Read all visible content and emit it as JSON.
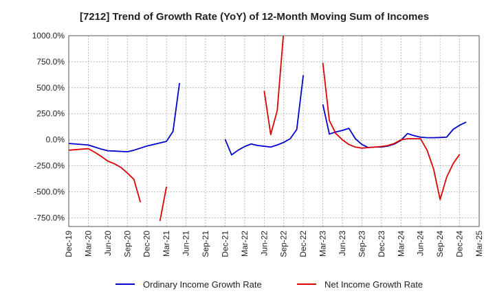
{
  "chart_data": {
    "type": "line",
    "title": "[7212]  Trend of Growth Rate (YoY) of 12-Month Moving Sum of Incomes",
    "xlabel": "",
    "ylabel": "",
    "ylim": [
      -833,
      1000
    ],
    "y_ticks": [
      -750,
      -500,
      -250,
      0,
      250,
      500,
      750,
      1000
    ],
    "y_tick_labels": [
      "-750.0%",
      "-500.0%",
      "-250.0%",
      "0.0%",
      "250.0%",
      "500.0%",
      "750.0%",
      "1000.0%"
    ],
    "x_tick_labels": [
      "Dec-19",
      "Mar-20",
      "Jun-20",
      "Sep-20",
      "Dec-20",
      "Mar-21",
      "Jun-21",
      "Sep-21",
      "Dec-21",
      "Mar-22",
      "Jun-22",
      "Sep-22",
      "Dec-22",
      "Mar-23",
      "Jun-23",
      "Sep-23",
      "Dec-23",
      "Mar-24",
      "Jun-24",
      "Sep-24",
      "Dec-24",
      "Mar-25"
    ],
    "x": [
      "2019-12",
      "2020-01",
      "2020-02",
      "2020-03",
      "2020-04",
      "2020-05",
      "2020-06",
      "2020-07",
      "2020-08",
      "2020-09",
      "2020-10",
      "2020-11",
      "2020-12",
      "2021-01",
      "2021-02",
      "2021-03",
      "2021-04",
      "2021-05",
      "2021-06",
      "2021-07",
      "2021-08",
      "2021-09",
      "2021-10",
      "2021-11",
      "2021-12",
      "2022-01",
      "2022-02",
      "2022-03",
      "2022-04",
      "2022-05",
      "2022-06",
      "2022-07",
      "2022-08",
      "2022-09",
      "2022-10",
      "2022-11",
      "2022-12",
      "2023-01",
      "2023-02",
      "2023-03",
      "2023-04",
      "2023-05",
      "2023-06",
      "2023-07",
      "2023-08",
      "2023-09",
      "2023-10",
      "2023-11",
      "2023-12",
      "2024-01",
      "2024-02",
      "2024-03",
      "2024-04",
      "2024-05",
      "2024-06",
      "2024-07",
      "2024-08",
      "2024-09",
      "2024-10",
      "2024-11",
      "2024-12",
      "2025-01",
      "2025-02",
      "2025-03"
    ],
    "grid": true,
    "legend_position": "bottom",
    "series": [
      {
        "name": "Ordinary Income Growth Rate",
        "color": "#0000cc",
        "values": [
          -35,
          -40,
          -45,
          -50,
          -70,
          -90,
          -105,
          -108,
          -112,
          -115,
          -100,
          -80,
          -60,
          -45,
          -30,
          -15,
          80,
          545,
          null,
          null,
          null,
          null,
          null,
          null,
          5,
          -145,
          -100,
          -65,
          -40,
          -55,
          -62,
          -70,
          -50,
          -25,
          10,
          100,
          620,
          null,
          null,
          340,
          55,
          75,
          90,
          110,
          10,
          -45,
          -75,
          -70,
          -70,
          -60,
          -40,
          -5,
          60,
          40,
          25,
          20,
          20,
          22,
          25,
          100,
          140,
          170,
          null,
          null
        ]
      },
      {
        "name": "Net Income Growth Rate",
        "color": "#dd0000",
        "values": [
          -100,
          -95,
          -90,
          -85,
          -120,
          -160,
          -205,
          -230,
          -265,
          -320,
          -380,
          -600,
          null,
          null,
          -780,
          -450,
          null,
          null,
          null,
          null,
          null,
          null,
          null,
          null,
          null,
          null,
          null,
          null,
          null,
          null,
          470,
          50,
          280,
          1050,
          null,
          null,
          null,
          null,
          null,
          740,
          185,
          60,
          0,
          -45,
          -70,
          -80,
          -75,
          -70,
          -65,
          -55,
          -35,
          0,
          10,
          10,
          10,
          -100,
          -280,
          -575,
          -360,
          -230,
          -140,
          null,
          null,
          null
        ]
      }
    ]
  }
}
